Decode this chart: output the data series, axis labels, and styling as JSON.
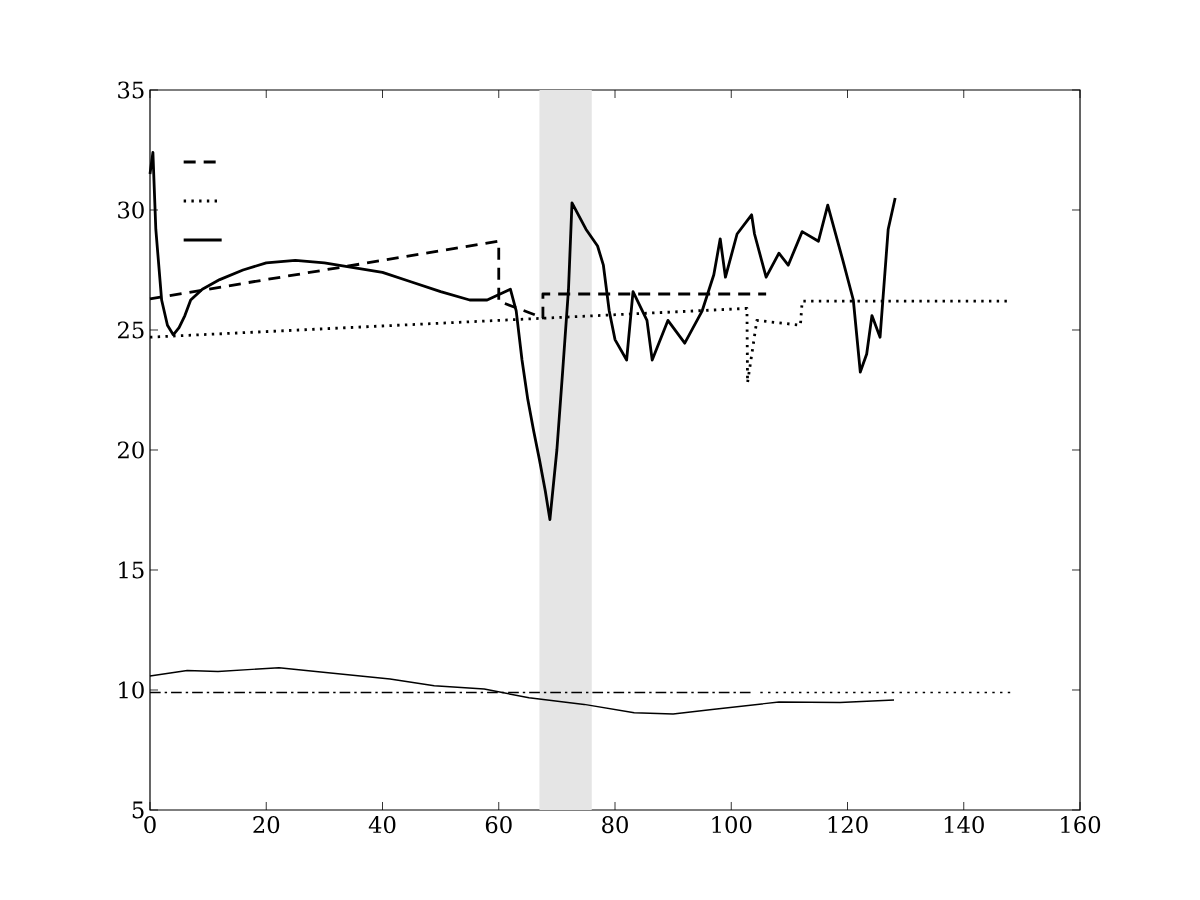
{
  "chart_data": {
    "type": "line",
    "xlim": [
      0,
      160
    ],
    "ylim": [
      5,
      35
    ],
    "xticks": [
      0,
      20,
      40,
      60,
      80,
      100,
      120,
      140,
      160
    ],
    "yticks": [
      5,
      10,
      15,
      20,
      25,
      30,
      35
    ],
    "bands": [
      {
        "axis": "x",
        "from": 67,
        "to": 76,
        "color": "#e5e5e5"
      }
    ],
    "series": [
      {
        "color": "#000000",
        "line_style": "dashed",
        "x": [
          0,
          60,
          60,
          65.5,
          67.6,
          67.6,
          106
        ],
        "values": [
          26.3,
          28.7,
          26.2,
          25.7,
          25.5,
          26.5,
          26.5
        ]
      },
      {
        "color": "#000000",
        "line_style": "dotted",
        "x": [
          0,
          102.7,
          102.8,
          104.4,
          111.9,
          112.2,
          148
        ],
        "values": [
          24.7,
          25.9,
          22.8,
          25.4,
          25.2,
          26.2,
          26.2
        ]
      },
      {
        "color": "#000000",
        "line_style": "solid",
        "x": [
          0,
          0.5,
          1,
          2,
          3,
          4,
          5,
          6,
          7,
          9,
          12,
          16,
          20,
          25,
          30,
          35,
          40,
          45,
          50,
          55,
          58,
          62,
          63,
          64,
          65,
          66,
          67,
          68,
          68.8,
          70,
          71,
          72,
          72.6,
          75,
          77,
          78,
          79,
          80,
          82,
          83.1,
          85.5,
          86.4,
          89.1,
          92,
          95,
          97,
          98.1,
          99,
          101,
          103.5,
          104,
          106,
          108.2,
          109.8,
          112.2,
          115,
          116.6,
          119.2,
          121,
          122.2,
          123.3,
          124.2,
          125.6,
          127,
          128.2
        ],
        "values": [
          31.5,
          32.4,
          29.2,
          26.25,
          25.2,
          24.8,
          25.1,
          25.6,
          26.25,
          26.7,
          27.1,
          27.5,
          27.8,
          27.9,
          27.8,
          27.6,
          27.4,
          27.0,
          26.6,
          26.25,
          26.25,
          26.7,
          25.8,
          23.75,
          22.1,
          20.8,
          19.6,
          18.3,
          17.1,
          20.0,
          23.3,
          26.7,
          30.3,
          29.2,
          28.5,
          27.7,
          25.8,
          24.6,
          23.75,
          26.6,
          25.4,
          23.75,
          25.4,
          24.45,
          25.8,
          27.3,
          28.8,
          27.2,
          29.0,
          29.8,
          29.0,
          27.2,
          28.2,
          27.7,
          29.1,
          28.7,
          30.2,
          27.9,
          26.25,
          23.25,
          24.0,
          25.6,
          24.7,
          29.2,
          30.5
        ]
      },
      {
        "color": "#000000",
        "line_style": "solid",
        "x": [
          0,
          6.4,
          11.7,
          22.2,
          29.8,
          41.3,
          48.9,
          57.5,
          65.2,
          74.7,
          83.3,
          90,
          96.7,
          108.2,
          118.7,
          128
        ],
        "values": [
          10.58,
          10.81,
          10.77,
          10.93,
          10.74,
          10.46,
          10.18,
          10.04,
          9.68,
          9.4,
          9.05,
          9.0,
          9.19,
          9.5,
          9.48,
          9.58
        ]
      },
      {
        "color": "#000000",
        "line_style": "dashdot",
        "x": [
          0,
          104
        ],
        "values": [
          9.9,
          9.9
        ]
      },
      {
        "color": "#000000",
        "line_style": "dotted",
        "x": [
          105,
          148
        ],
        "values": [
          9.9,
          9.9
        ]
      }
    ]
  }
}
